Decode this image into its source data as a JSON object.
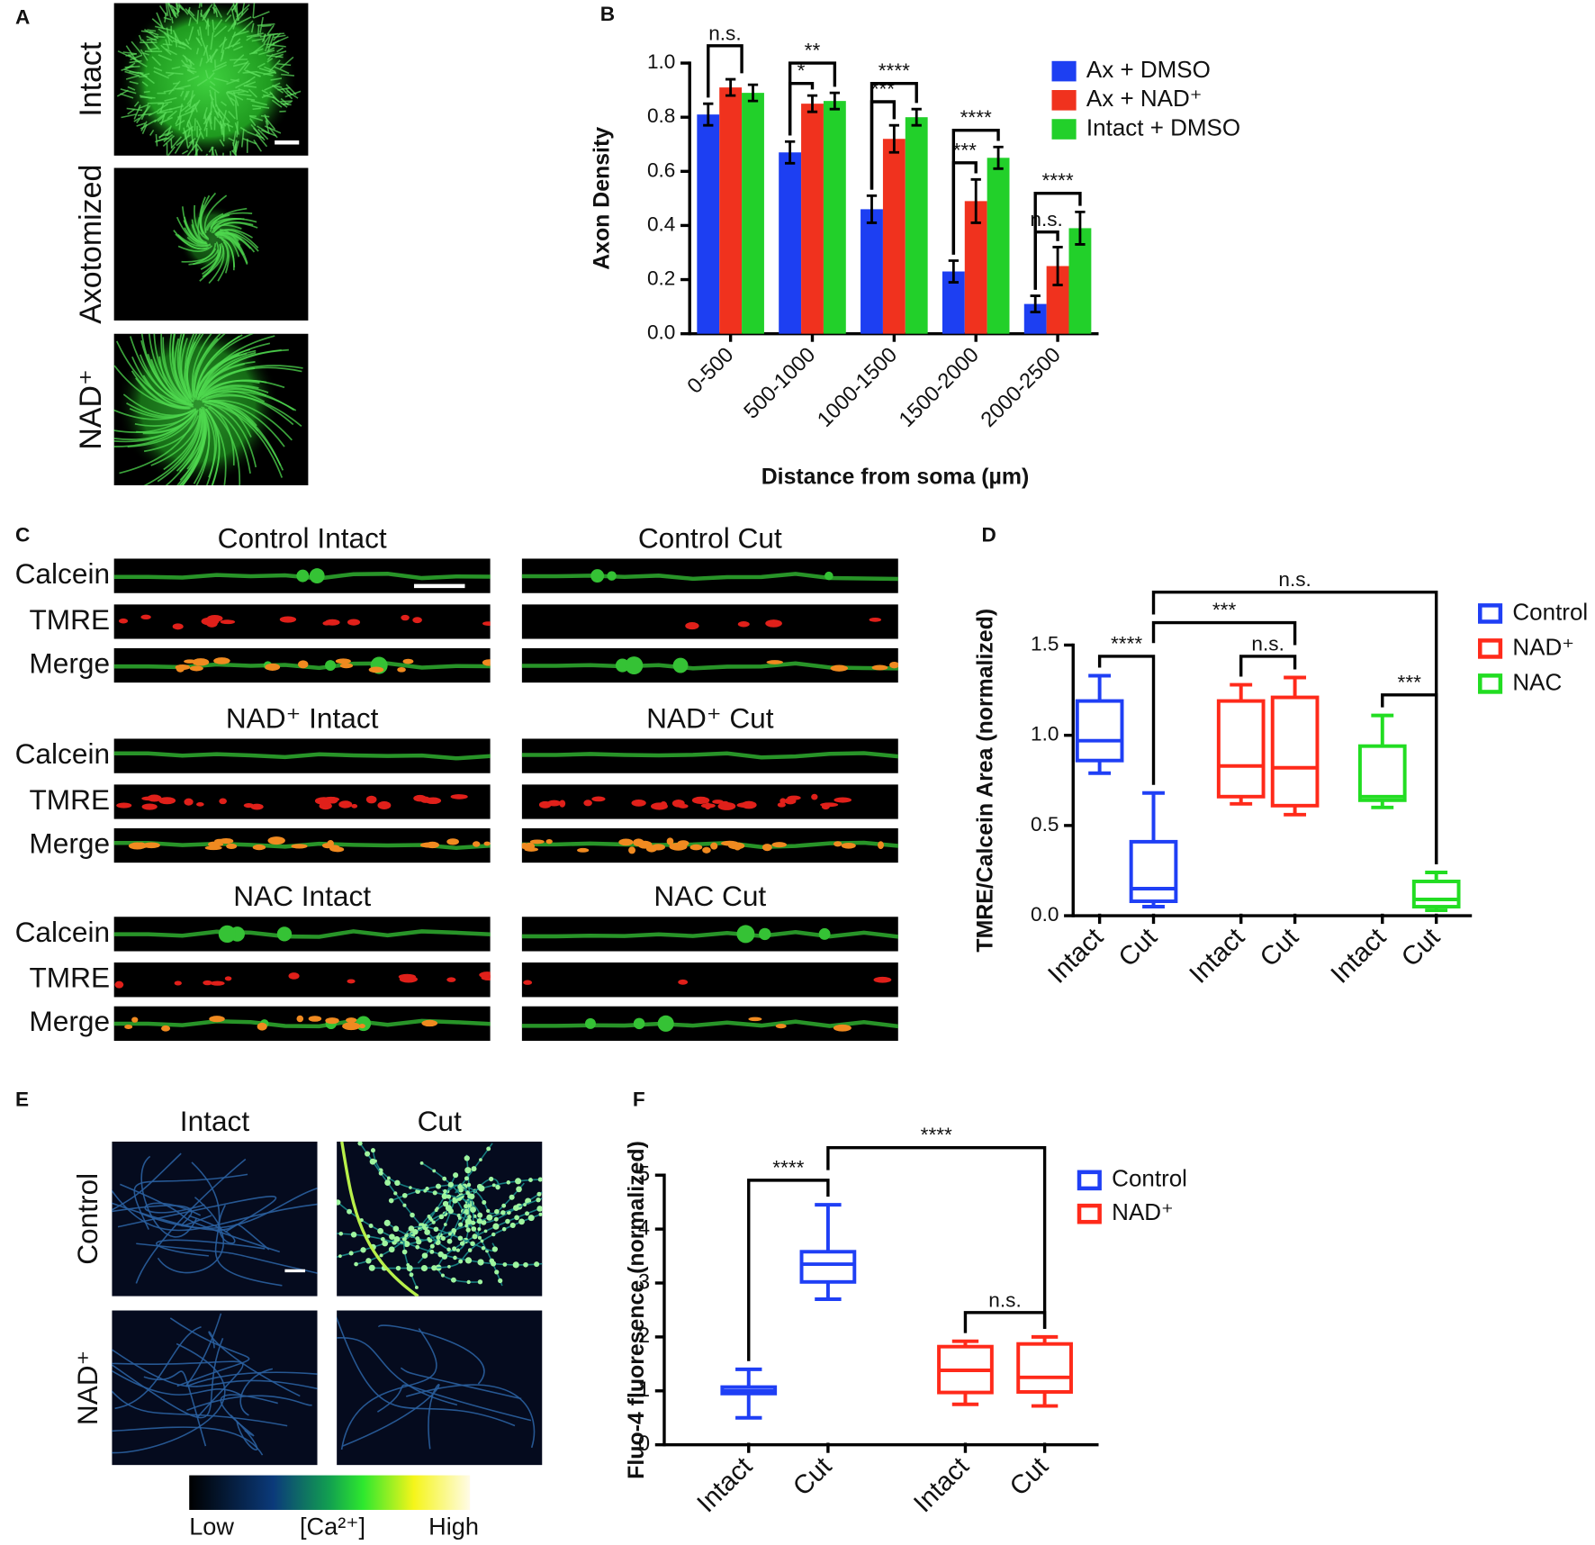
{
  "panel_labels": [
    "A",
    "B",
    "C",
    "D",
    "E",
    "F"
  ],
  "panel_a": {
    "rows": [
      "Intact",
      "Axotomized",
      "NAD⁺"
    ]
  },
  "panel_c": {
    "titles": [
      "Control Intact",
      "Control Cut",
      "NAD⁺ Intact",
      "NAD⁺ Cut",
      "NAC Intact",
      "NAC Cut"
    ],
    "channels": [
      "Calcein",
      "TMRE",
      "Merge"
    ]
  },
  "panel_e": {
    "columns": [
      "Intact",
      "Cut"
    ],
    "rows": [
      "Control",
      "NAD⁺"
    ],
    "colorbar": [
      "Low",
      "[Ca²⁺]",
      "High"
    ]
  },
  "chart_data": [
    {
      "type": "bar",
      "x_label": "Distance from soma (µm)",
      "y_label": "Axon Density",
      "categories": [
        "0-500",
        "500-1000",
        "1000-1500",
        "1500-2000",
        "2000-2500"
      ],
      "series": [
        {
          "name": "Ax + DMSO",
          "color": "#1d3ff2",
          "values": [
            0.81,
            0.67,
            0.46,
            0.23,
            0.11
          ],
          "errors": [
            0.04,
            0.04,
            0.05,
            0.04,
            0.03
          ]
        },
        {
          "name": "Ax + NAD⁺",
          "color": "#f0321e",
          "values": [
            0.91,
            0.85,
            0.72,
            0.49,
            0.25
          ],
          "errors": [
            0.03,
            0.03,
            0.05,
            0.08,
            0.07
          ]
        },
        {
          "name": "Intact + DMSO",
          "color": "#22d02a",
          "values": [
            0.89,
            0.86,
            0.8,
            0.65,
            0.39
          ],
          "errors": [
            0.03,
            0.03,
            0.03,
            0.04,
            0.06
          ]
        }
      ],
      "ylim": [
        0,
        1
      ],
      "yticks": [
        {
          "value": 0,
          "label": "0.0"
        },
        0.2,
        0.4,
        0.6,
        0.8,
        {
          "value": 1,
          "label": "1.0"
        }
      ],
      "annotations": [
        "n.s.",
        "*",
        "**",
        "***",
        "****",
        "***",
        "****",
        "n.s.",
        "****"
      ],
      "legend": "upper right"
    },
    {
      "type": "box",
      "y_label": "TMRE/Calcein Area (normalized)",
      "categories": [
        "Intact",
        "Cut",
        "Intact",
        "Cut",
        "Intact",
        "Cut"
      ],
      "series": [
        {
          "name": "Control",
          "color": "#1f3ff5",
          "boxes": [
            {
              "min": 0.79,
              "q1": 0.86,
              "median": 0.97,
              "q3": 1.19,
              "max": 1.33
            },
            {
              "min": 0.05,
              "q1": 0.08,
              "median": 0.15,
              "q3": 0.41,
              "max": 0.68
            }
          ]
        },
        {
          "name": "NAD⁺",
          "color": "#ff2a1a",
          "boxes": [
            {
              "min": 0.62,
              "q1": 0.66,
              "median": 0.83,
              "q3": 1.19,
              "max": 1.28
            },
            {
              "min": 0.56,
              "q1": 0.61,
              "median": 0.82,
              "q3": 1.21,
              "max": 1.32
            }
          ]
        },
        {
          "name": "NAC",
          "color": "#22dd22",
          "boxes": [
            {
              "min": 0.6,
              "q1": 0.64,
              "median": 0.66,
              "q3": 0.94,
              "max": 1.11
            },
            {
              "min": 0.03,
              "q1": 0.05,
              "median": 0.09,
              "q3": 0.19,
              "max": 0.24
            }
          ]
        }
      ],
      "ylim": [
        0,
        1.5
      ],
      "yticks": [
        {
          "value": 0,
          "label": "0.0"
        },
        0.5,
        {
          "value": 1,
          "label": "1.0"
        },
        1.5
      ],
      "annotations": [
        "****",
        "n.s.",
        "***",
        "***",
        "n.s."
      ],
      "legend": "upper right"
    },
    {
      "type": "box",
      "y_label": "Fluo-4 fluoresence (normalized)",
      "categories": [
        "Intact",
        "Cut",
        "Intact",
        "Cut"
      ],
      "series": [
        {
          "name": "Control",
          "color": "#1f3ff5",
          "boxes": [
            {
              "min": 0.5,
              "q1": 0.95,
              "median": 1.0,
              "q3": 1.07,
              "max": 1.4
            },
            {
              "min": 2.7,
              "q1": 3.02,
              "median": 3.35,
              "q3": 3.58,
              "max": 4.45
            }
          ]
        },
        {
          "name": "NAD⁺",
          "color": "#ff2a1a",
          "boxes": [
            {
              "min": 0.75,
              "q1": 0.97,
              "median": 1.38,
              "q3": 1.82,
              "max": 1.92
            },
            {
              "min": 0.72,
              "q1": 0.98,
              "median": 1.25,
              "q3": 1.87,
              "max": 2.0
            }
          ]
        }
      ],
      "ylim": [
        0,
        5
      ],
      "yticks": [
        0,
        1,
        2,
        3,
        4,
        5
      ],
      "annotations": [
        "****",
        "****",
        "n.s."
      ],
      "legend": "upper right"
    }
  ]
}
